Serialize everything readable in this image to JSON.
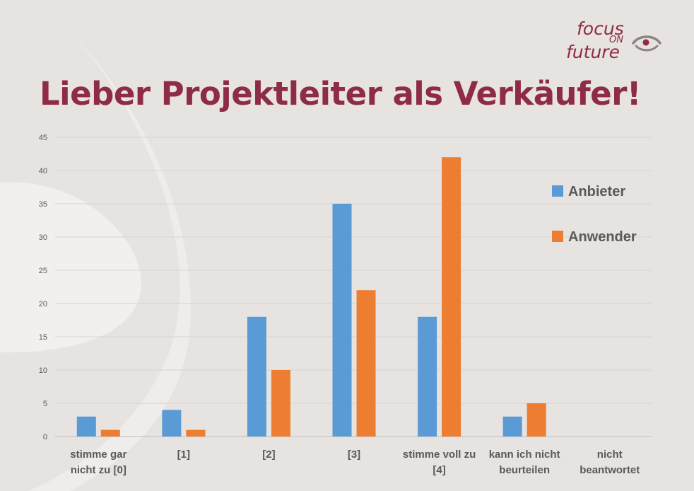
{
  "logo": {
    "line1": "focus",
    "line2": "ON",
    "line3": "future"
  },
  "title": "Lieber Projektleiter als Verkäufer!",
  "colors": {
    "title": "#8e2b45",
    "anbieter": "#5b9bd5",
    "anwender": "#ed7d31",
    "grid": "#d6d3d1",
    "text": "#595959"
  },
  "chart_data": {
    "type": "bar",
    "title": "Lieber Projektleiter als Verkäufer!",
    "categories": [
      [
        "stimme gar",
        "nicht zu [0]"
      ],
      [
        "[1]"
      ],
      [
        "[2]"
      ],
      [
        "[3]"
      ],
      [
        "stimme voll zu",
        "[4]"
      ],
      [
        "kann ich nicht",
        "beurteilen"
      ],
      [
        "nicht",
        "beantwortet"
      ]
    ],
    "series": [
      {
        "name": "Anbieter",
        "values": [
          3,
          4,
          18,
          35,
          18,
          3,
          0
        ]
      },
      {
        "name": "Anwender",
        "values": [
          1,
          1,
          10,
          22,
          42,
          5,
          0
        ]
      }
    ],
    "ylim": [
      0,
      45
    ],
    "yticks": [
      0,
      5,
      10,
      15,
      20,
      25,
      30,
      35,
      40,
      45
    ],
    "grid": true,
    "legend": "right"
  }
}
